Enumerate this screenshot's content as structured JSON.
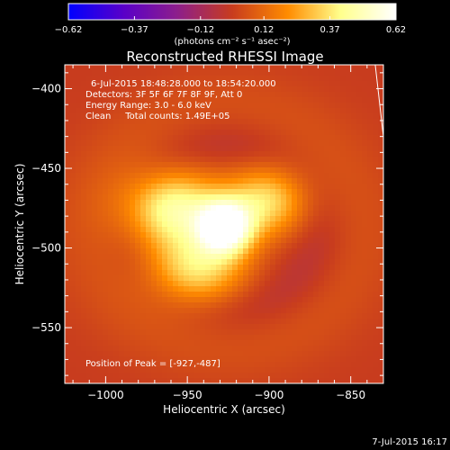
{
  "chart_data": {
    "type": "heatmap",
    "title": "Reconstructed RHESSI Image",
    "xlabel": "Heliocentric X (arcsec)",
    "ylabel": "Heliocentric Y (arcsec)",
    "xlim": [
      -1025,
      -830
    ],
    "ylim": [
      -585,
      -385
    ],
    "x_ticks": [
      -1000,
      -950,
      -900,
      -850
    ],
    "x_tick_labels": [
      "−1000",
      "−950",
      "−900",
      "−850"
    ],
    "y_ticks": [
      -400,
      -450,
      -500,
      -550
    ],
    "y_tick_labels": [
      "−400",
      "−450",
      "−500",
      "−550"
    ],
    "colorbar": {
      "min": -0.62,
      "max": 0.62,
      "tick_values": [
        -0.62,
        -0.37,
        -0.12,
        0.12,
        0.37,
        0.62
      ],
      "tick_labels": [
        "−0.62",
        "−0.37",
        "−0.12",
        "0.12",
        "0.37",
        "0.62"
      ],
      "units": "(photons cm⁻² s⁻¹ asec⁻²)",
      "colors": [
        "#0000ff",
        "#5a00c8",
        "#8c1e8c",
        "#c83c1e",
        "#ff8c00",
        "#ffff8c",
        "#ffffff"
      ]
    },
    "peak": {
      "x": -927,
      "y": -487,
      "value": 0.62
    },
    "sources": [
      {
        "x": -927,
        "y": -487,
        "sx": 12,
        "sy": 12,
        "amp": 0.62
      },
      {
        "x": -960,
        "y": -475,
        "sx": 22,
        "sy": 18,
        "amp": 0.45
      },
      {
        "x": -900,
        "y": -470,
        "sx": 18,
        "sy": 16,
        "amp": 0.35
      },
      {
        "x": -945,
        "y": -515,
        "sx": 22,
        "sy": 16,
        "amp": 0.35
      }
    ],
    "limb_line": {
      "x": [
        -835,
        -830
      ],
      "y": [
        -385,
        -430
      ]
    }
  },
  "annotations": {
    "time": "6-Jul-2015 18:48:28.000 to 18:54:20.000",
    "detectors": "Detectors: 3F 5F 6F 7F 8F 9F, Att 0",
    "energy": "Energy Range: 3.0 - 6.0 keV",
    "clean": "Clean     Total counts: 1.49E+05",
    "peak": "Position of Peak = [-927,-487]"
  },
  "footer": {
    "timestamp": "7-Jul-2015 16:17"
  }
}
